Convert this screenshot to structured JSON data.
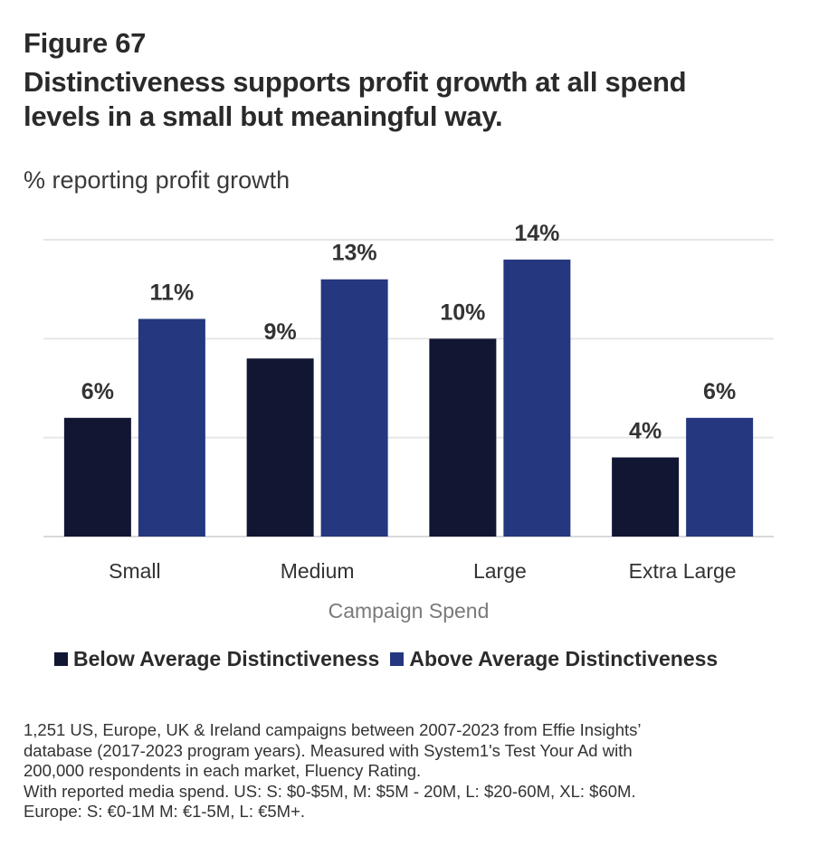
{
  "figure_label": "Figure 67",
  "title_lines": [
    "Distinctiveness supports profit growth at all spend",
    "levels in a small but meaningful way."
  ],
  "subtitle": "% reporting profit growth",
  "colors": {
    "below": "#111633",
    "above": "#24377f",
    "grid": "#e6e6e6",
    "xlabel": "#7a7a7a"
  },
  "legend": {
    "below_label": "Below Average Distinctiveness",
    "above_label": "Above Average Distinctiveness"
  },
  "chart_data": {
    "type": "bar",
    "title": "Distinctiveness supports profit growth at all spend levels in a small but meaningful way.",
    "ylabel": "% reporting profit growth",
    "xlabel": "Campaign Spend",
    "categories": [
      "Small",
      "Medium",
      "Large",
      "Extra Large"
    ],
    "series": [
      {
        "name": "Below Average Distinctiveness",
        "values": [
          6,
          9,
          10,
          4
        ],
        "labels": [
          "6%",
          "9%",
          "10%",
          "4%"
        ]
      },
      {
        "name": "Above Average Distinctiveness",
        "values": [
          11,
          13,
          14,
          6
        ],
        "labels": [
          "11%",
          "13%",
          "14%",
          "6%"
        ]
      }
    ],
    "ylim": [
      0,
      15
    ],
    "gridlines": [
      0,
      5,
      10,
      15
    ],
    "grid": true,
    "legend_position": "bottom"
  },
  "notes": [
    "1,251 US, Europe, UK & Ireland campaigns between 2007-2023 from Effie Insights’",
    "database  (2017-2023 program years). Measured with System1's Test Your Ad with",
    "200,000 respondents in each market, Fluency Rating.",
    "With reported media spend. US: S: $0-$5M, M: $5M - 20M, L: $20-60M, XL: $60M.",
    "Europe: S: €0-1M M: €1-5M, L: €5M+."
  ]
}
